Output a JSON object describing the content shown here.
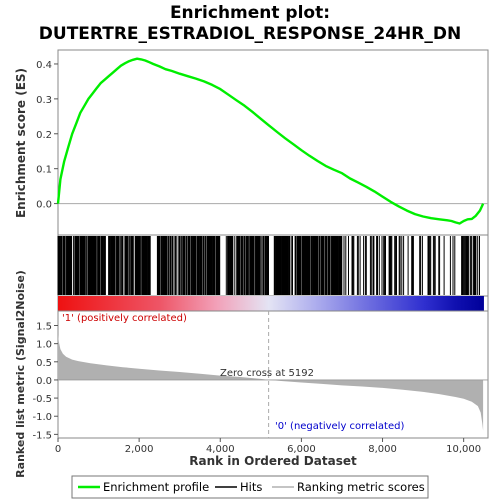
{
  "title_line1": "Enrichment plot:",
  "title_line2": "DUTERTRE_ESTRADIOL_RESPONSE_24HR_DN",
  "colors": {
    "enrichment_line": "#00ee00",
    "hit_line": "#000000",
    "metric_fill": "#b0b0b0",
    "positive_label": "#cc0000",
    "negative_label": "#0000cc",
    "zero_cross_line": "#aaaaaa",
    "panel_border": "#888888"
  },
  "annotations": {
    "positive": "'1' (positively correlated)",
    "negative": "'0' (negatively correlated)",
    "zero_cross": "Zero cross at 5192"
  },
  "legend": {
    "items": [
      {
        "label": "Enrichment profile",
        "color": "#00ee00",
        "icon": "line-green"
      },
      {
        "label": "Hits",
        "color": "#000000",
        "icon": "line-black"
      },
      {
        "label": "Ranking metric scores",
        "color": "#b0b0b0",
        "icon": "line-gray"
      }
    ]
  },
  "chart_data": [
    {
      "type": "line",
      "name": "enrichment-profile",
      "ylabel": "Enrichment score (ES)",
      "xlim": [
        0,
        10600
      ],
      "ylim": [
        -0.09,
        0.44
      ],
      "yticks": [
        0.0,
        0.1,
        0.2,
        0.3,
        0.4
      ],
      "ytick_labels": [
        "0.0",
        "0.1",
        "0.2",
        "0.3",
        "0.4"
      ],
      "x": [
        0,
        60,
        150,
        250,
        350,
        450,
        550,
        650,
        750,
        850,
        950,
        1050,
        1150,
        1250,
        1350,
        1450,
        1550,
        1650,
        1750,
        1850,
        1950,
        2050,
        2150,
        2250,
        2350,
        2500,
        2650,
        2800,
        3000,
        3200,
        3400,
        3600,
        3800,
        4000,
        4200,
        4400,
        4600,
        4800,
        5000,
        5200,
        5400,
        5600,
        5800,
        6000,
        6200,
        6400,
        6600,
        6800,
        7000,
        7200,
        7400,
        7600,
        7800,
        8000,
        8200,
        8400,
        8600,
        8800,
        9000,
        9200,
        9400,
        9600,
        9700,
        9800,
        9900,
        10000,
        10100,
        10200,
        10300,
        10400,
        10450,
        10480
      ],
      "y": [
        0.0,
        0.07,
        0.12,
        0.16,
        0.2,
        0.23,
        0.26,
        0.28,
        0.3,
        0.315,
        0.33,
        0.345,
        0.355,
        0.365,
        0.375,
        0.385,
        0.395,
        0.402,
        0.408,
        0.412,
        0.415,
        0.413,
        0.41,
        0.405,
        0.4,
        0.393,
        0.385,
        0.38,
        0.372,
        0.365,
        0.358,
        0.35,
        0.34,
        0.328,
        0.312,
        0.296,
        0.28,
        0.262,
        0.243,
        0.224,
        0.205,
        0.187,
        0.17,
        0.153,
        0.137,
        0.122,
        0.108,
        0.097,
        0.087,
        0.072,
        0.06,
        0.048,
        0.035,
        0.02,
        0.005,
        -0.008,
        -0.02,
        -0.03,
        -0.037,
        -0.042,
        -0.045,
        -0.048,
        -0.05,
        -0.054,
        -0.057,
        -0.05,
        -0.045,
        -0.044,
        -0.035,
        -0.02,
        -0.008,
        0.0
      ],
      "zero_line": 0.0
    },
    {
      "type": "hits",
      "name": "hits",
      "xlim": [
        0,
        10600
      ],
      "dense_regions": [
        [
          0,
          2300
        ],
        [
          2450,
          4000
        ],
        [
          4150,
          5200
        ],
        [
          5300,
          7000
        ]
      ],
      "sparse_regions": [
        [
          7050,
          7600
        ],
        [
          7700,
          8250
        ],
        [
          8300,
          9000
        ],
        [
          9100,
          9800
        ],
        [
          9950,
          10450
        ]
      ]
    },
    {
      "type": "heatmap",
      "name": "ranked-list-colorbar",
      "xlim": [
        0,
        10600
      ],
      "gradient_stops": [
        {
          "x": 0,
          "color": "#ee1111"
        },
        {
          "x": 2500,
          "color": "#ee5566"
        },
        {
          "x": 3900,
          "color": "#f2a0b8"
        },
        {
          "x": 5192,
          "color": "#e4e4f4"
        },
        {
          "x": 6300,
          "color": "#b0b0ee"
        },
        {
          "x": 7600,
          "color": "#7070e0"
        },
        {
          "x": 9000,
          "color": "#3030d0"
        },
        {
          "x": 9800,
          "color": "#1010b0"
        },
        {
          "x": 10500,
          "color": "#000099"
        }
      ]
    },
    {
      "type": "area",
      "name": "ranked-list-metric",
      "xlabel": "Rank in Ordered Dataset",
      "ylabel": "Ranked list metric (Signal2Noise)",
      "xlim": [
        0,
        10600
      ],
      "ylim": [
        -1.6,
        1.9
      ],
      "yticks": [
        -1.5,
        -1.0,
        -0.5,
        0.0,
        0.5,
        1.0,
        1.5
      ],
      "ytick_labels": [
        "-1.5",
        "-1.0",
        "-0.5",
        "0.0",
        "0.5",
        "1.0",
        "1.5"
      ],
      "xticks": [
        0,
        2000,
        4000,
        6000,
        8000,
        10000
      ],
      "xtick_labels": [
        "0",
        "2,000",
        "4,000",
        "6,000",
        "8,000",
        "10,000"
      ],
      "x": [
        0,
        20,
        60,
        120,
        200,
        350,
        500,
        800,
        1200,
        1600,
        2000,
        2500,
        3000,
        3500,
        4000,
        4500,
        5000,
        5192,
        5500,
        6000,
        6500,
        7000,
        7500,
        8000,
        8500,
        9000,
        9400,
        9800,
        10000,
        10200,
        10350,
        10420,
        10460,
        10480
      ],
      "y": [
        1.25,
        1.05,
        0.85,
        0.72,
        0.64,
        0.56,
        0.52,
        0.46,
        0.4,
        0.35,
        0.31,
        0.26,
        0.22,
        0.17,
        0.12,
        0.08,
        0.03,
        0.0,
        -0.03,
        -0.07,
        -0.11,
        -0.15,
        -0.18,
        -0.22,
        -0.27,
        -0.33,
        -0.39,
        -0.47,
        -0.52,
        -0.6,
        -0.72,
        -0.9,
        -1.2,
        -1.4
      ],
      "zero_cross": 5192
    }
  ]
}
